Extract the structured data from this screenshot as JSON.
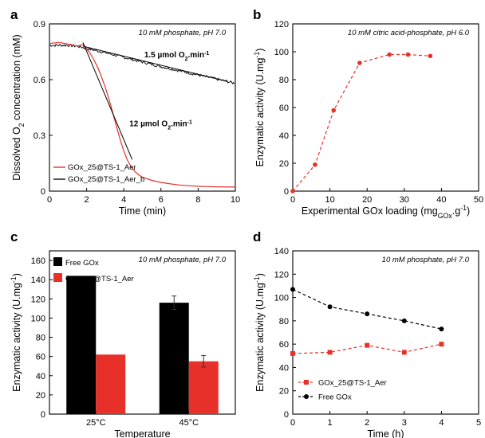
{
  "chart_data": [
    {
      "panel": "a",
      "type": "line",
      "condition": "10 mM phosphate, pH 7.0",
      "xlabel": "Time (min)",
      "ylabel_parts": [
        "Dissolved O",
        "2",
        " concentration (mM)"
      ],
      "xlim": [
        0,
        10
      ],
      "ylim": [
        0,
        0.9
      ],
      "xticks": [
        0,
        2,
        4,
        6,
        8,
        10
      ],
      "yticks": [
        0,
        0.3,
        0.6,
        0.9
      ],
      "ytick_labels": [
        "0",
        "0.3",
        "0.6",
        "0.9"
      ],
      "series": [
        {
          "name": "GOx_25@TS-1_Aer",
          "color": "#e8302a",
          "x": [
            0,
            0.5,
            1.0,
            1.5,
            1.8,
            2.0,
            2.2,
            2.4,
            2.6,
            2.8,
            3.0,
            3.2,
            3.4,
            3.6,
            3.8,
            4.0,
            4.2,
            4.4,
            4.6,
            4.8,
            5.0,
            5.5,
            6.0,
            6.5,
            7.0,
            7.5,
            8.0,
            9.0,
            10.0
          ],
          "y": [
            0.8,
            0.8,
            0.795,
            0.79,
            0.78,
            0.765,
            0.74,
            0.705,
            0.665,
            0.615,
            0.56,
            0.495,
            0.425,
            0.35,
            0.28,
            0.215,
            0.165,
            0.13,
            0.105,
            0.088,
            0.075,
            0.058,
            0.047,
            0.039,
            0.033,
            0.029,
            0.026,
            0.023,
            0.022
          ]
        },
        {
          "name": "GOx_25@TS-1_Aer_b",
          "color": "#111111",
          "x": [
            0,
            1.0,
            1.5,
            2.0,
            3.0,
            4.0,
            5.0,
            6.0,
            7.0,
            8.0,
            9.0,
            10.0
          ],
          "y": [
            0.785,
            0.785,
            0.78,
            0.768,
            0.745,
            0.72,
            0.695,
            0.67,
            0.648,
            0.625,
            0.603,
            0.58
          ]
        }
      ],
      "fit_lines": [
        {
          "x": [
            1.8,
            4.45
          ],
          "y": [
            0.8,
            0.17
          ]
        },
        {
          "x": [
            1.8,
            9.6
          ],
          "y": [
            0.78,
            0.59
          ]
        }
      ],
      "annotations": [
        {
          "parts": [
            "1.5  µmol O",
            "2",
            ".min",
            "-1"
          ],
          "x": 5.1,
          "y": 0.72
        },
        {
          "parts": [
            "12  µmol O",
            "2",
            ".min",
            "-1"
          ],
          "x": 4.3,
          "y": 0.35
        }
      ],
      "legend": "bottom-left"
    },
    {
      "panel": "b",
      "type": "line",
      "condition": "10 mM citric acid-phosphate, pH 6.0",
      "xlabel_parts": [
        "Experimental GOx loading (mg",
        "GOx",
        ".g",
        "-1",
        ")"
      ],
      "ylabel_parts": [
        "Enzymatic activity (U.mg",
        "-1",
        ")"
      ],
      "xlim": [
        0,
        50
      ],
      "ylim": [
        0,
        120
      ],
      "xticks": [
        0,
        10,
        20,
        30,
        40,
        50
      ],
      "yticks": [
        0,
        20,
        40,
        60,
        80,
        100,
        120
      ],
      "series": [
        {
          "color": "#e8302a",
          "x": [
            0,
            6,
            11,
            18,
            26,
            31,
            37
          ],
          "y": [
            0,
            19,
            58,
            92,
            98,
            98,
            97
          ]
        }
      ]
    },
    {
      "panel": "c",
      "type": "bar",
      "condition": "10 mM phosphate, pH 7.0",
      "xlabel": "Temperature",
      "ylabel_parts": [
        "Enzymatic activity (U.mg",
        "-1",
        ")"
      ],
      "ylim": [
        0,
        170
      ],
      "yticks": [
        0,
        20,
        40,
        60,
        80,
        100,
        120,
        140,
        160
      ],
      "categories": [
        "25°C",
        "45°C"
      ],
      "series": [
        {
          "name": "Free GOx",
          "color": "#000000",
          "values": [
            144,
            116
          ],
          "errors": [
            0,
            7
          ]
        },
        {
          "name": "GOx_25@TS-1_Aer",
          "color": "#e8302a",
          "values": [
            62,
            55
          ],
          "errors": [
            0,
            6
          ]
        }
      ],
      "legend": "top-left"
    },
    {
      "panel": "d",
      "type": "line",
      "condition": "10 mM phosphate, pH 7.0",
      "xlabel": "Time (h)",
      "ylabel_parts": [
        "Enzymatic activity (U.mg",
        "-1",
        ")"
      ],
      "xlim": [
        0,
        5
      ],
      "ylim": [
        0,
        140
      ],
      "xticks": [
        0,
        1,
        2,
        3,
        4,
        5
      ],
      "yticks": [
        0,
        20,
        40,
        60,
        80,
        100,
        120,
        140
      ],
      "series": [
        {
          "name": "GOx_25@TS-1_Aer",
          "color": "#e8302a",
          "marker": "square",
          "x": [
            0,
            1,
            2,
            3,
            4
          ],
          "y": [
            52,
            53,
            59,
            53,
            60
          ]
        },
        {
          "name": "Free GOx",
          "color": "#000000",
          "marker": "circle",
          "x": [
            0,
            1,
            2,
            3,
            4
          ],
          "y": [
            107,
            92,
            86,
            80,
            73
          ]
        }
      ],
      "legend": "bottom-left"
    }
  ]
}
